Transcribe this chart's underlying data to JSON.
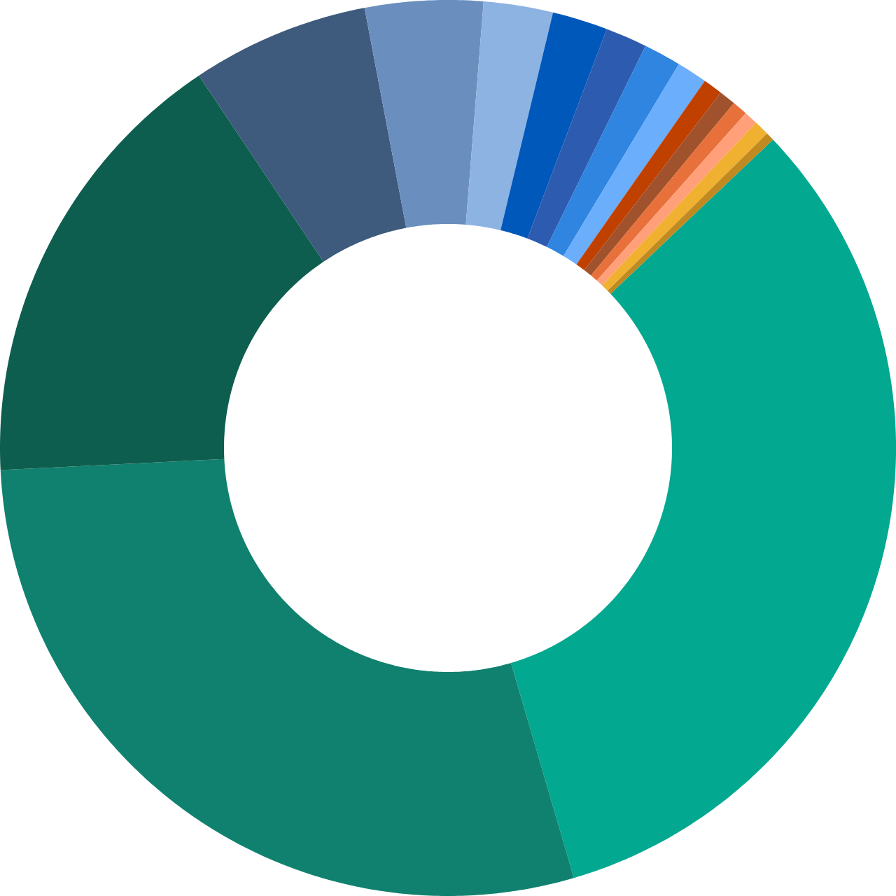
{
  "chart_data": {
    "type": "donut",
    "categories": [
      null,
      null,
      null,
      null,
      null,
      null,
      null,
      null,
      null,
      null,
      null,
      null,
      null,
      null,
      null,
      null
    ],
    "values": [
      32.55,
      28.75,
      16.4,
      6.4,
      4.25,
      2.5,
      2.0,
      1.5,
      1.35,
      1.1,
      0.7,
      0.6,
      0.55,
      0.5,
      0.55,
      0.3
    ],
    "colors": [
      "#02a88f",
      "#10816e",
      "#0e5e4f",
      "#3e5a7c",
      "#6a8fbf",
      "#8db3e3",
      "#0058bb",
      "#2d5bb0",
      "#2f85e0",
      "#6aaefc",
      "#c04000",
      "#a0522d",
      "#e8703a",
      "#ffa07a",
      "#f0b030",
      "#c08a20"
    ]
  }
}
